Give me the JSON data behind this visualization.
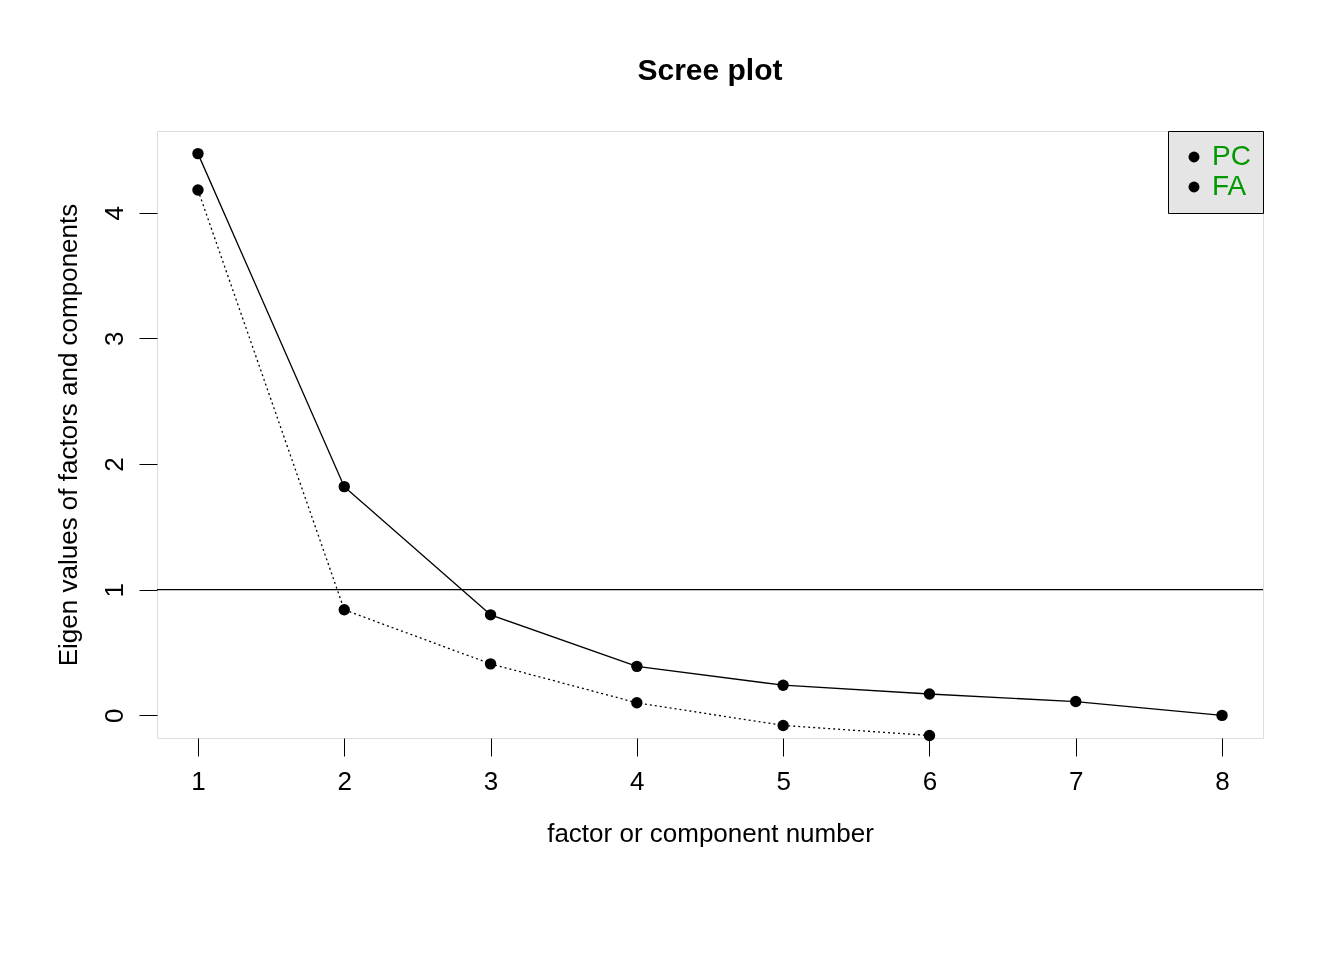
{
  "chart_data": {
    "type": "line",
    "title": "Scree plot",
    "xlabel": "factor or component number",
    "ylabel": "Eigen values of factors and components",
    "x": [
      1,
      2,
      3,
      4,
      5,
      6,
      7,
      8
    ],
    "series": [
      {
        "name": "PC",
        "color": "#000000",
        "marker": "circle",
        "line_style": "solid",
        "values": [
          4.47,
          1.82,
          0.8,
          0.39,
          0.24,
          0.17,
          0.11,
          0.0
        ]
      },
      {
        "name": "FA",
        "color": "#000000",
        "marker": "circle",
        "line_style": "dotted",
        "values": [
          4.18,
          0.84,
          0.41,
          0.1,
          -0.08,
          -0.16,
          null,
          null
        ]
      }
    ],
    "xlim": [
      0.72,
      8.28
    ],
    "xticks": [
      1,
      2,
      3,
      4,
      5,
      6,
      7,
      8
    ],
    "ylim": [
      -0.18,
      4.65
    ],
    "yticks": [
      0,
      1,
      2,
      3,
      4
    ],
    "ref_lines": [
      {
        "axis": "y",
        "value": 1,
        "color": "#000000"
      }
    ],
    "grid": false,
    "legend": "top right"
  }
}
